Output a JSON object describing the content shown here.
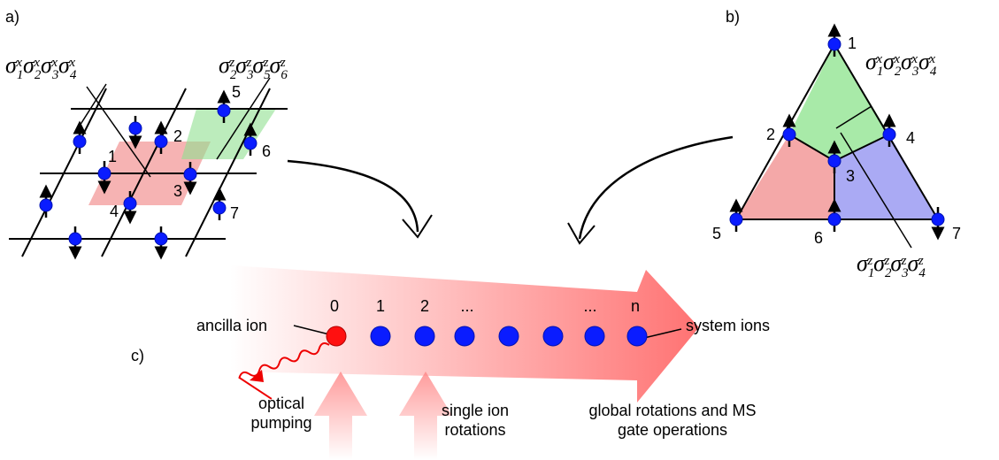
{
  "panel_a": {
    "label": "a)",
    "operators": [
      {
        "symbol": "σ",
        "factors": [
          {
            "sub": "1",
            "sup": "x"
          },
          {
            "sub": "2",
            "sup": "x"
          },
          {
            "sub": "3",
            "sup": "x"
          },
          {
            "sub": "4",
            "sup": "x"
          }
        ]
      },
      {
        "symbol": "σ",
        "factors": [
          {
            "sub": "2",
            "sup": "z"
          },
          {
            "sub": "3",
            "sup": "z"
          },
          {
            "sub": "5",
            "sup": "z"
          },
          {
            "sub": "6",
            "sup": "z"
          }
        ]
      }
    ],
    "sites": [
      "1",
      "2",
      "3",
      "4",
      "5",
      "6",
      "7"
    ]
  },
  "panel_b": {
    "label": "b)",
    "operators": [
      {
        "symbol": "σ",
        "factors": [
          {
            "sub": "1",
            "sup": "x"
          },
          {
            "sub": "2",
            "sup": "x"
          },
          {
            "sub": "3",
            "sup": "x"
          },
          {
            "sub": "4",
            "sup": "x"
          }
        ]
      },
      {
        "symbol": "σ",
        "factors": [
          {
            "sub": "1",
            "sup": "z"
          },
          {
            "sub": "2",
            "sup": "z"
          },
          {
            "sub": "3",
            "sup": "z"
          },
          {
            "sub": "4",
            "sup": "z"
          }
        ]
      }
    ],
    "sites": [
      "1",
      "2",
      "3",
      "4",
      "5",
      "6",
      "7"
    ]
  },
  "panel_c": {
    "label": "c)",
    "ions": [
      "0",
      "1",
      "2",
      "...",
      "...",
      "n"
    ],
    "ancilla": "ancilla ion",
    "system": "system ions",
    "pumping": [
      "optical",
      "pumping"
    ],
    "single": [
      "single ion",
      "rotations"
    ],
    "global": [
      "global rotations and MS",
      "gate operations"
    ]
  }
}
